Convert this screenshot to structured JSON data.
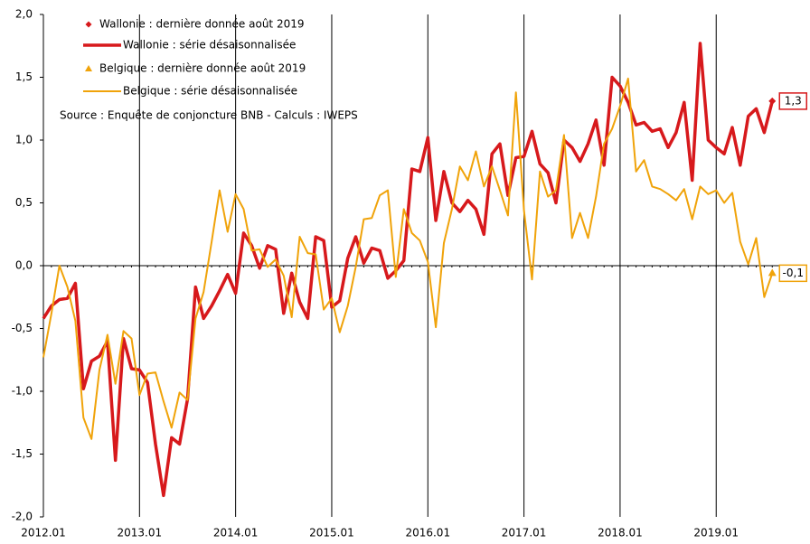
{
  "chart_data": {
    "type": "line",
    "categories": [
      "2012.01",
      null,
      null,
      null,
      null,
      null,
      null,
      null,
      null,
      null,
      null,
      null,
      "2013.01",
      null,
      null,
      null,
      null,
      null,
      null,
      null,
      null,
      null,
      null,
      null,
      "2014.01",
      null,
      null,
      null,
      null,
      null,
      null,
      null,
      null,
      null,
      null,
      null,
      "2015.01",
      null,
      null,
      null,
      null,
      null,
      null,
      null,
      null,
      null,
      null,
      null,
      "2016.01",
      null,
      null,
      null,
      null,
      null,
      null,
      null,
      null,
      null,
      null,
      null,
      "2017.01",
      null,
      null,
      null,
      null,
      null,
      null,
      null,
      null,
      null,
      null,
      null,
      "2018.01",
      null,
      null,
      null,
      null,
      null,
      null,
      null,
      null,
      null,
      null,
      null,
      "2019.01",
      null,
      null,
      null,
      null,
      null,
      null,
      null
    ],
    "series": [
      {
        "name": "Wallonie : dernière donnée août 2019",
        "color": "#d7191c",
        "marker": "diamond",
        "values": [
          null,
          null,
          null,
          null,
          null,
          null,
          null,
          null,
          null,
          null,
          null,
          null,
          null,
          null,
          null,
          null,
          null,
          null,
          null,
          null,
          null,
          null,
          null,
          null,
          null,
          null,
          null,
          null,
          null,
          null,
          null,
          null,
          null,
          null,
          null,
          null,
          null,
          null,
          null,
          null,
          null,
          null,
          null,
          null,
          null,
          null,
          null,
          null,
          null,
          null,
          null,
          null,
          null,
          null,
          null,
          null,
          null,
          null,
          null,
          null,
          null,
          null,
          null,
          null,
          null,
          null,
          null,
          null,
          null,
          null,
          null,
          null,
          null,
          null,
          null,
          null,
          null,
          null,
          null,
          null,
          null,
          null,
          null,
          null,
          null,
          null,
          null,
          null,
          null,
          null,
          null,
          1.31
        ],
        "value_labels": [
          null,
          null,
          null,
          null,
          null,
          null,
          null,
          null,
          null,
          null,
          null,
          null,
          null,
          null,
          null,
          null,
          null,
          null,
          null,
          null,
          null,
          null,
          null,
          null,
          null,
          null,
          null,
          null,
          null,
          null,
          null,
          null,
          null,
          null,
          null,
          null,
          null,
          null,
          null,
          null,
          null,
          null,
          null,
          null,
          null,
          null,
          null,
          null,
          null,
          null,
          null,
          null,
          null,
          null,
          null,
          null,
          null,
          null,
          null,
          null,
          null,
          null,
          null,
          null,
          null,
          null,
          null,
          null,
          null,
          null,
          null,
          null,
          null,
          null,
          null,
          null,
          null,
          null,
          null,
          null,
          null,
          null,
          null,
          null,
          null,
          null,
          null,
          null,
          null,
          null,
          null,
          "1,3"
        ]
      },
      {
        "name": "Wallonie : série désaisonnalisée",
        "color": "#d7191c",
        "width": 3.5,
        "values": [
          -0.42,
          -0.32,
          -0.27,
          -0.26,
          -0.14,
          -0.98,
          -0.76,
          -0.72,
          -0.6,
          -1.55,
          -0.58,
          -0.82,
          -0.83,
          -0.93,
          -1.42,
          -1.83,
          -1.37,
          -1.42,
          -1.06,
          -0.17,
          -0.42,
          -0.32,
          -0.2,
          -0.07,
          -0.22,
          0.26,
          0.16,
          -0.02,
          0.16,
          0.13,
          -0.38,
          -0.06,
          -0.29,
          -0.42,
          0.23,
          0.2,
          -0.33,
          -0.28,
          0.06,
          0.23,
          0.02,
          0.14,
          0.12,
          -0.1,
          -0.04,
          0.04,
          0.77,
          0.75,
          1.02,
          0.36,
          0.75,
          0.5,
          0.43,
          0.52,
          0.45,
          0.25,
          0.89,
          0.97,
          0.56,
          0.86,
          0.87,
          1.07,
          0.81,
          0.74,
          0.5,
          1.0,
          0.94,
          0.83,
          0.97,
          1.16,
          0.8,
          1.5,
          1.43,
          1.3,
          1.12,
          1.14,
          1.07,
          1.09,
          0.94,
          1.06,
          1.3,
          0.68,
          1.77,
          1.0,
          0.94,
          0.89,
          1.1,
          0.8,
          1.19,
          1.25,
          1.06,
          1.31
        ]
      },
      {
        "name": "Belgique : dernière donnée août 2019",
        "color": "#f0a30a",
        "marker": "triangle",
        "values": [
          null,
          null,
          null,
          null,
          null,
          null,
          null,
          null,
          null,
          null,
          null,
          null,
          null,
          null,
          null,
          null,
          null,
          null,
          null,
          null,
          null,
          null,
          null,
          null,
          null,
          null,
          null,
          null,
          null,
          null,
          null,
          null,
          null,
          null,
          null,
          null,
          null,
          null,
          null,
          null,
          null,
          null,
          null,
          null,
          null,
          null,
          null,
          null,
          null,
          null,
          null,
          null,
          null,
          null,
          null,
          null,
          null,
          null,
          null,
          null,
          null,
          null,
          null,
          null,
          null,
          null,
          null,
          null,
          null,
          null,
          null,
          null,
          null,
          null,
          null,
          null,
          null,
          null,
          null,
          null,
          null,
          null,
          null,
          null,
          null,
          null,
          null,
          null,
          null,
          null,
          null,
          -0.06
        ],
        "value_labels": [
          null,
          null,
          null,
          null,
          null,
          null,
          null,
          null,
          null,
          null,
          null,
          null,
          null,
          null,
          null,
          null,
          null,
          null,
          null,
          null,
          null,
          null,
          null,
          null,
          null,
          null,
          null,
          null,
          null,
          null,
          null,
          null,
          null,
          null,
          null,
          null,
          null,
          null,
          null,
          null,
          null,
          null,
          null,
          null,
          null,
          null,
          null,
          null,
          null,
          null,
          null,
          null,
          null,
          null,
          null,
          null,
          null,
          null,
          null,
          null,
          null,
          null,
          null,
          null,
          null,
          null,
          null,
          null,
          null,
          null,
          null,
          null,
          null,
          null,
          null,
          null,
          null,
          null,
          null,
          null,
          null,
          null,
          null,
          null,
          null,
          null,
          null,
          null,
          null,
          null,
          null,
          "-0,1"
        ]
      },
      {
        "name": "Belgique : série désaisonnalisée",
        "color": "#f0a30a",
        "width": 2,
        "values": [
          -0.73,
          -0.38,
          0.0,
          -0.17,
          -0.44,
          -1.21,
          -1.38,
          -0.83,
          -0.55,
          -0.94,
          -0.52,
          -0.58,
          -1.03,
          -0.86,
          -0.85,
          -1.08,
          -1.29,
          -1.01,
          -1.07,
          -0.42,
          -0.21,
          0.19,
          0.6,
          0.27,
          0.57,
          0.45,
          0.12,
          0.13,
          -0.01,
          0.05,
          -0.08,
          -0.41,
          0.23,
          0.1,
          0.09,
          -0.35,
          -0.26,
          -0.53,
          -0.32,
          -0.01,
          0.37,
          0.38,
          0.56,
          0.6,
          -0.09,
          0.45,
          0.26,
          0.2,
          0.03,
          -0.49,
          0.18,
          0.45,
          0.79,
          0.68,
          0.91,
          0.63,
          0.79,
          0.6,
          0.4,
          1.38,
          0.44,
          -0.11,
          0.75,
          0.55,
          0.6,
          1.04,
          0.22,
          0.42,
          0.22,
          0.55,
          0.97,
          1.09,
          1.27,
          1.49,
          0.75,
          0.84,
          0.63,
          0.61,
          0.57,
          0.52,
          0.61,
          0.37,
          0.63,
          0.57,
          0.6,
          0.5,
          0.58,
          0.19,
          0.01,
          0.22,
          -0.25,
          -0.06
        ]
      }
    ],
    "annotation": "Source : Enquête de conjoncture BNB - Calculs : IWEPS",
    "ylim": [
      -2,
      2
    ],
    "yticks": [
      {
        "value": -2,
        "label": "-2,0"
      },
      {
        "value": -1.5,
        "label": "-1,5"
      },
      {
        "value": -1,
        "label": "-1,0"
      },
      {
        "value": -0.5,
        "label": "-0,5"
      },
      {
        "value": 0,
        "label": "0,0"
      },
      {
        "value": 0.5,
        "label": "0,5"
      },
      {
        "value": 1,
        "label": "1,0"
      },
      {
        "value": 1.5,
        "label": "1,5"
      },
      {
        "value": 2,
        "label": "2,0"
      }
    ]
  }
}
